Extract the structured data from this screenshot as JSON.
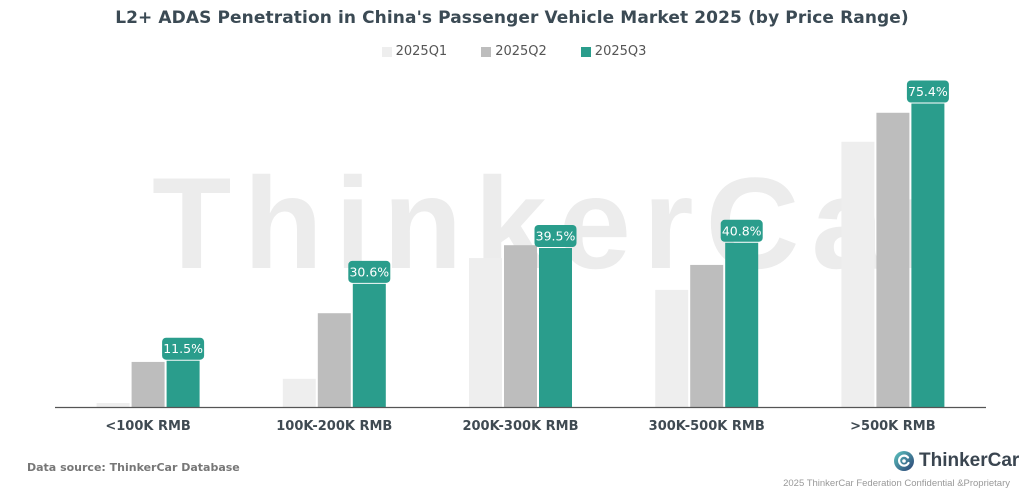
{
  "chart_data": {
    "type": "bar",
    "title": "L2+ ADAS Penetration in China's Passenger Vehicle Market 2025 (by Price Range)",
    "xlabel": "",
    "ylabel": "",
    "ylim": [
      0,
      80
    ],
    "grid": false,
    "legend_position": "top-center",
    "categories": [
      "<100K RMB",
      "100K-200K RMB",
      "200K-300K RMB",
      "300K-500K RMB",
      ">500K RMB"
    ],
    "series": [
      {
        "name": "2025Q1",
        "color": "#eeeeee",
        "values": [
          1.0,
          7.0,
          37.0,
          29.1,
          65.9
        ],
        "show_labels": false
      },
      {
        "name": "2025Q2",
        "color": "#bdbdbd",
        "values": [
          11.2,
          23.3,
          40.2,
          35.3,
          73.1
        ],
        "show_labels": false
      },
      {
        "name": "2025Q3",
        "color": "#2a9d8c",
        "values": [
          11.5,
          30.6,
          39.5,
          40.8,
          75.4
        ],
        "show_labels": true
      }
    ],
    "data_labels": [
      "11.5%",
      "30.6%",
      "39.5%",
      "40.8%",
      "75.4%"
    ],
    "watermark": "ThinkerCar"
  },
  "footer": {
    "source": "Data source: ThinkerCar Database",
    "brand": "ThinkerCar",
    "confidential": "2025 ThinkerCar Federation Confidential &Proprietary"
  }
}
